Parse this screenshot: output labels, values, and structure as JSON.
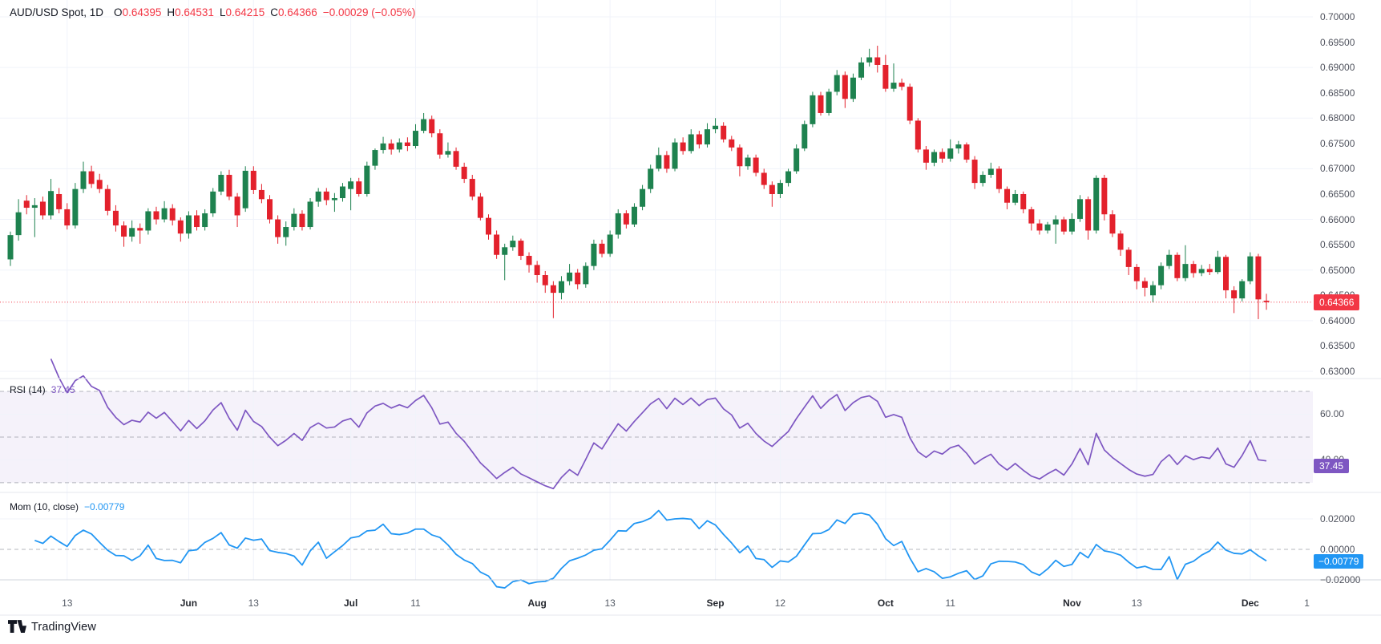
{
  "header": {
    "symbol": "AUD/USD Spot, 1D",
    "open_label": "O",
    "open": "0.64395",
    "high_label": "H",
    "high": "0.64531",
    "low_label": "L",
    "low": "0.64215",
    "close_label": "C",
    "close": "0.64366",
    "change": "−0.00029 (−0.05%)"
  },
  "rsi_indicator": {
    "label": "RSI (14)",
    "value": "37.45",
    "badge": "37.45",
    "axis_labels": [
      "60.00",
      "40.00"
    ],
    "axis_values": [
      60,
      40
    ]
  },
  "mom_indicator": {
    "label": "Mom (10, close)",
    "value": "−0.00779",
    "badge": "−0.00779",
    "axis_labels": [
      "0.02000",
      "0.00000",
      "−0.02000"
    ],
    "axis_values": [
      0.02,
      0,
      -0.02
    ]
  },
  "price_badge": "0.64366",
  "price_axis": [
    "0.70000",
    "0.69500",
    "0.69000",
    "0.68500",
    "0.68000",
    "0.67500",
    "0.67000",
    "0.66500",
    "0.66000",
    "0.65500",
    "0.65000",
    "0.64500",
    "0.64000",
    "0.63500",
    "0.63000"
  ],
  "price_axis_values": [
    0.7,
    0.695,
    0.69,
    0.685,
    0.68,
    0.675,
    0.67,
    0.665,
    0.66,
    0.655,
    0.65,
    0.645,
    0.64,
    0.635,
    0.63
  ],
  "time_axis": [
    {
      "label": "13",
      "index": 7,
      "bold": false
    },
    {
      "label": "Jun",
      "index": 22,
      "bold": true
    },
    {
      "label": "13",
      "index": 30,
      "bold": false
    },
    {
      "label": "Jul",
      "index": 42,
      "bold": true
    },
    {
      "label": "11",
      "index": 50,
      "bold": false
    },
    {
      "label": "Aug",
      "index": 65,
      "bold": true
    },
    {
      "label": "13",
      "index": 74,
      "bold": false
    },
    {
      "label": "Sep",
      "index": 87,
      "bold": true
    },
    {
      "label": "12",
      "index": 95,
      "bold": false
    },
    {
      "label": "Oct",
      "index": 108,
      "bold": true
    },
    {
      "label": "11",
      "index": 116,
      "bold": false
    },
    {
      "label": "Nov",
      "index": 131,
      "bold": true
    },
    {
      "label": "13",
      "index": 139,
      "bold": false
    },
    {
      "label": "Dec",
      "index": 153,
      "bold": true
    },
    {
      "label": "1",
      "index": 160,
      "bold": false
    }
  ],
  "logo": {
    "text": "TradingView"
  },
  "colors": {
    "up": "#1e824f",
    "down": "#e3212c",
    "accent_red": "#f23645",
    "rsi": "#7e57c2",
    "rsi_band": "rgba(126,87,194,0.08)",
    "mom": "#2196f3",
    "grid": "#f0f3fa",
    "level_dash": "#8c919b",
    "separator": "#e4e7ee",
    "axis_border": "#d1d4dc"
  },
  "chart_data": {
    "type": "candlestick",
    "title": "AUD/USD Spot, 1D",
    "symbol": "AUD/USD Spot",
    "interval": "1D",
    "last_price": 0.64366,
    "price_view_range": [
      0.62857,
      0.70333
    ],
    "price_grid_step": 0.01,
    "legend_note": "grid on; right price scale; lower panes: RSI(14) with band 30-70, Momentum(10, close)",
    "rsi": {
      "period": 14,
      "overbought": 70,
      "middle": 50,
      "oversold": 30,
      "last": 37.45,
      "view_range": [
        25.7,
        75.6
      ]
    },
    "momentum": {
      "period": 10,
      "source": "close",
      "last": -0.00779,
      "view_range": [
        -0.0374,
        0.0374
      ]
    },
    "candles": [
      [
        0.6521,
        0.6576,
        0.6508,
        0.6569
      ],
      [
        0.6569,
        0.664,
        0.6558,
        0.6614
      ],
      [
        0.6637,
        0.6648,
        0.661,
        0.6623
      ],
      [
        0.6623,
        0.6642,
        0.6565,
        0.6628
      ],
      [
        0.6635,
        0.6645,
        0.66,
        0.6608
      ],
      [
        0.6608,
        0.668,
        0.66,
        0.6656
      ],
      [
        0.665,
        0.6662,
        0.6612,
        0.662
      ],
      [
        0.662,
        0.6632,
        0.658,
        0.6588
      ],
      [
        0.6588,
        0.6672,
        0.6582,
        0.666
      ],
      [
        0.666,
        0.6714,
        0.6652,
        0.6695
      ],
      [
        0.6695,
        0.6706,
        0.6662,
        0.667
      ],
      [
        0.6678,
        0.669,
        0.6652,
        0.666
      ],
      [
        0.666,
        0.6668,
        0.6608,
        0.6617
      ],
      [
        0.6617,
        0.6628,
        0.6576,
        0.6588
      ],
      [
        0.6588,
        0.6596,
        0.6546,
        0.6566
      ],
      [
        0.6566,
        0.6598,
        0.6556,
        0.6583
      ],
      [
        0.6583,
        0.6592,
        0.6552,
        0.6578
      ],
      [
        0.6578,
        0.6622,
        0.657,
        0.6616
      ],
      [
        0.6616,
        0.6625,
        0.659,
        0.66
      ],
      [
        0.66,
        0.6636,
        0.6594,
        0.6622
      ],
      [
        0.6622,
        0.663,
        0.6588,
        0.6598
      ],
      [
        0.6598,
        0.6604,
        0.6556,
        0.6572
      ],
      [
        0.6572,
        0.6616,
        0.6562,
        0.6608
      ],
      [
        0.6608,
        0.6618,
        0.6578,
        0.6585
      ],
      [
        0.6585,
        0.662,
        0.6578,
        0.6612
      ],
      [
        0.6612,
        0.6662,
        0.6605,
        0.6655
      ],
      [
        0.6655,
        0.6695,
        0.6648,
        0.6688
      ],
      [
        0.6688,
        0.6698,
        0.6638,
        0.6645
      ],
      [
        0.6645,
        0.6652,
        0.6585,
        0.6608
      ],
      [
        0.6622,
        0.6705,
        0.6615,
        0.6696
      ],
      [
        0.6696,
        0.6705,
        0.665,
        0.6658
      ],
      [
        0.6658,
        0.667,
        0.6632,
        0.664
      ],
      [
        0.664,
        0.6648,
        0.6592,
        0.66
      ],
      [
        0.66,
        0.6608,
        0.6552,
        0.6565
      ],
      [
        0.6565,
        0.6596,
        0.6548,
        0.6585
      ],
      [
        0.6585,
        0.6622,
        0.6578,
        0.6611
      ],
      [
        0.6611,
        0.6618,
        0.6578,
        0.6585
      ],
      [
        0.6585,
        0.6642,
        0.658,
        0.6635
      ],
      [
        0.6635,
        0.6662,
        0.6625,
        0.6655
      ],
      [
        0.6655,
        0.6662,
        0.6628,
        0.6638
      ],
      [
        0.6638,
        0.6652,
        0.6615,
        0.6642
      ],
      [
        0.6642,
        0.6672,
        0.6635,
        0.6665
      ],
      [
        0.666,
        0.6682,
        0.6618,
        0.6675
      ],
      [
        0.6675,
        0.6682,
        0.6645,
        0.665
      ],
      [
        0.665,
        0.6714,
        0.6645,
        0.6706
      ],
      [
        0.6706,
        0.674,
        0.6698,
        0.6737
      ],
      [
        0.6737,
        0.6763,
        0.673,
        0.675
      ],
      [
        0.675,
        0.6758,
        0.6728,
        0.6738
      ],
      [
        0.6738,
        0.676,
        0.6732,
        0.6752
      ],
      [
        0.6752,
        0.6762,
        0.6735,
        0.6745
      ],
      [
        0.6745,
        0.6788,
        0.674,
        0.6775
      ],
      [
        0.6775,
        0.681,
        0.677,
        0.6798
      ],
      [
        0.6798,
        0.6805,
        0.6762,
        0.677
      ],
      [
        0.677,
        0.6778,
        0.672,
        0.6728
      ],
      [
        0.6728,
        0.6752,
        0.6722,
        0.6735
      ],
      [
        0.6735,
        0.6742,
        0.6698,
        0.6704
      ],
      [
        0.6704,
        0.6712,
        0.6672,
        0.668
      ],
      [
        0.668,
        0.6688,
        0.6638,
        0.6645
      ],
      [
        0.6645,
        0.6652,
        0.6598,
        0.6603
      ],
      [
        0.6603,
        0.661,
        0.656,
        0.657
      ],
      [
        0.657,
        0.6578,
        0.6522,
        0.653
      ],
      [
        0.653,
        0.6552,
        0.648,
        0.6545
      ],
      [
        0.6545,
        0.6568,
        0.6538,
        0.6558
      ],
      [
        0.6558,
        0.6562,
        0.652,
        0.6528
      ],
      [
        0.6528,
        0.6535,
        0.6495,
        0.651
      ],
      [
        0.651,
        0.6518,
        0.6475,
        0.649
      ],
      [
        0.649,
        0.6498,
        0.6455,
        0.647
      ],
      [
        0.647,
        0.6478,
        0.6405,
        0.6455
      ],
      [
        0.6455,
        0.6488,
        0.6442,
        0.6478
      ],
      [
        0.6478,
        0.6512,
        0.647,
        0.6495
      ],
      [
        0.6495,
        0.6502,
        0.6462,
        0.6472
      ],
      [
        0.6472,
        0.6515,
        0.6465,
        0.6508
      ],
      [
        0.6508,
        0.656,
        0.65,
        0.6552
      ],
      [
        0.6552,
        0.656,
        0.6525,
        0.6532
      ],
      [
        0.6532,
        0.6578,
        0.6526,
        0.657
      ],
      [
        0.657,
        0.662,
        0.6562,
        0.6612
      ],
      [
        0.6612,
        0.6618,
        0.6582,
        0.659
      ],
      [
        0.659,
        0.6632,
        0.6585,
        0.6625
      ],
      [
        0.6625,
        0.6668,
        0.6618,
        0.666
      ],
      [
        0.666,
        0.6708,
        0.6652,
        0.67
      ],
      [
        0.67,
        0.6742,
        0.6695,
        0.6727
      ],
      [
        0.6727,
        0.6735,
        0.6692,
        0.67
      ],
      [
        0.67,
        0.676,
        0.6695,
        0.6752
      ],
      [
        0.6752,
        0.6762,
        0.6728,
        0.6735
      ],
      [
        0.6735,
        0.6778,
        0.673,
        0.6768
      ],
      [
        0.6768,
        0.6775,
        0.674,
        0.6748
      ],
      [
        0.6748,
        0.679,
        0.6742,
        0.6778
      ],
      [
        0.6778,
        0.68,
        0.677,
        0.6785
      ],
      [
        0.6785,
        0.6792,
        0.6752,
        0.6758
      ],
      [
        0.6758,
        0.6765,
        0.6735,
        0.6742
      ],
      [
        0.6742,
        0.6748,
        0.6685,
        0.6705
      ],
      [
        0.6705,
        0.6728,
        0.6698,
        0.6722
      ],
      [
        0.6722,
        0.6728,
        0.6685,
        0.6692
      ],
      [
        0.6692,
        0.67,
        0.666,
        0.6668
      ],
      [
        0.6668,
        0.6675,
        0.6625,
        0.665
      ],
      [
        0.665,
        0.6678,
        0.6642,
        0.6672
      ],
      [
        0.6672,
        0.67,
        0.6665,
        0.6695
      ],
      [
        0.6695,
        0.6748,
        0.669,
        0.674
      ],
      [
        0.674,
        0.6795,
        0.6735,
        0.6788
      ],
      [
        0.6788,
        0.6852,
        0.6782,
        0.6845
      ],
      [
        0.6845,
        0.6852,
        0.6805,
        0.681
      ],
      [
        0.681,
        0.6858,
        0.6805,
        0.6852
      ],
      [
        0.6852,
        0.6895,
        0.6845,
        0.6885
      ],
      [
        0.6885,
        0.6892,
        0.682,
        0.6838
      ],
      [
        0.6838,
        0.6888,
        0.6832,
        0.688
      ],
      [
        0.688,
        0.692,
        0.6875,
        0.691
      ],
      [
        0.691,
        0.6937,
        0.6902,
        0.692
      ],
      [
        0.692,
        0.6943,
        0.689,
        0.6905
      ],
      [
        0.6905,
        0.6925,
        0.6852,
        0.6858
      ],
      [
        0.6858,
        0.6908,
        0.6852,
        0.687
      ],
      [
        0.687,
        0.6878,
        0.6855,
        0.6862
      ],
      [
        0.6862,
        0.6868,
        0.6788,
        0.6795
      ],
      [
        0.6795,
        0.68,
        0.6732,
        0.6738
      ],
      [
        0.6738,
        0.6745,
        0.6698,
        0.6712
      ],
      [
        0.6712,
        0.6738,
        0.6705,
        0.6733
      ],
      [
        0.6733,
        0.674,
        0.6712,
        0.672
      ],
      [
        0.672,
        0.6758,
        0.6714,
        0.674
      ],
      [
        0.674,
        0.6755,
        0.673,
        0.6748
      ],
      [
        0.6748,
        0.6752,
        0.6712,
        0.6718
      ],
      [
        0.6718,
        0.6725,
        0.666,
        0.6672
      ],
      [
        0.6672,
        0.6695,
        0.6665,
        0.6688
      ],
      [
        0.6688,
        0.6712,
        0.6682,
        0.67
      ],
      [
        0.67,
        0.6705,
        0.6652,
        0.666
      ],
      [
        0.666,
        0.6665,
        0.662,
        0.6633
      ],
      [
        0.6633,
        0.6658,
        0.6628,
        0.665
      ],
      [
        0.665,
        0.6655,
        0.6612,
        0.662
      ],
      [
        0.662,
        0.6625,
        0.6578,
        0.6592
      ],
      [
        0.6592,
        0.66,
        0.657,
        0.6578
      ],
      [
        0.6578,
        0.6595,
        0.6572,
        0.659
      ],
      [
        0.659,
        0.6608,
        0.6552,
        0.66
      ],
      [
        0.66,
        0.6605,
        0.657,
        0.6576
      ],
      [
        0.6576,
        0.6612,
        0.657,
        0.6601
      ],
      [
        0.6601,
        0.6648,
        0.6595,
        0.664
      ],
      [
        0.664,
        0.6645,
        0.656,
        0.6578
      ],
      [
        0.6578,
        0.6687,
        0.6572,
        0.6682
      ],
      [
        0.6682,
        0.6688,
        0.6598,
        0.661
      ],
      [
        0.661,
        0.6618,
        0.6565,
        0.6572
      ],
      [
        0.6572,
        0.6578,
        0.6528,
        0.654
      ],
      [
        0.654,
        0.6545,
        0.649,
        0.6506
      ],
      [
        0.6506,
        0.6512,
        0.6462,
        0.6478
      ],
      [
        0.6478,
        0.6485,
        0.6448,
        0.6465
      ],
      [
        0.645,
        0.6478,
        0.6436,
        0.647
      ],
      [
        0.647,
        0.6515,
        0.6462,
        0.6508
      ],
      [
        0.6508,
        0.654,
        0.6502,
        0.653
      ],
      [
        0.653,
        0.6535,
        0.6478,
        0.6484
      ],
      [
        0.6484,
        0.6549,
        0.6478,
        0.6512
      ],
      [
        0.6512,
        0.6518,
        0.6485,
        0.6494
      ],
      [
        0.6494,
        0.651,
        0.6488,
        0.6502
      ],
      [
        0.6502,
        0.6512,
        0.649,
        0.6496
      ],
      [
        0.6496,
        0.6538,
        0.6492,
        0.6526
      ],
      [
        0.6526,
        0.653,
        0.6444,
        0.646
      ],
      [
        0.646,
        0.6468,
        0.6415,
        0.6444
      ],
      [
        0.6444,
        0.6482,
        0.6438,
        0.6478
      ],
      [
        0.6478,
        0.6535,
        0.6472,
        0.6527
      ],
      [
        0.6527,
        0.6532,
        0.6403,
        0.6442
      ],
      [
        0.64395,
        0.64531,
        0.64215,
        0.64366
      ]
    ]
  }
}
